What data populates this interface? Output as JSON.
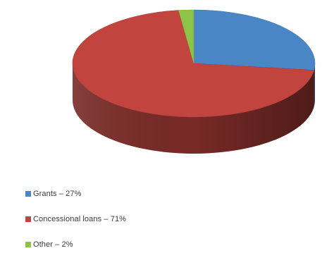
{
  "chart_data": {
    "type": "pie",
    "title": "",
    "slices": [
      {
        "label": "Grants",
        "value": 27,
        "color": "#4a86c5"
      },
      {
        "label": "Concessional loans",
        "value": 71,
        "color": "#c2443f"
      },
      {
        "label": "Other",
        "value": 2,
        "color": "#8ec34a"
      }
    ],
    "legend": {
      "placement": "bottom-left",
      "entries": [
        {
          "text": "Grants – 27%",
          "color": "#4a86c5"
        },
        {
          "text": "Concessional loans – 71%",
          "color": "#c2443f"
        },
        {
          "text": "Other – 2%",
          "color": "#8ec34a"
        }
      ]
    },
    "style": "3d"
  }
}
